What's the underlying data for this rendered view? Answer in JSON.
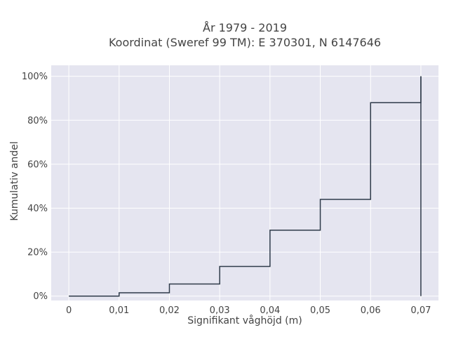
{
  "chart_data": {
    "type": "line",
    "line_shape": "step",
    "title_lines": [
      "År 1979 - 2019",
      "Koordinat (Sweref 99 TM): E 370301, N 6147646"
    ],
    "xlabel": "Signifikant våghöjd (m)",
    "ylabel": "Kumulativ andel",
    "xlim": [
      -0.0035,
      0.0735
    ],
    "ylim": [
      -0.02,
      1.05
    ],
    "x_ticks": [
      0,
      0.01,
      0.02,
      0.03,
      0.04,
      0.05,
      0.06,
      0.07
    ],
    "x_tick_labels": [
      "0",
      "0,01",
      "0,02",
      "0,03",
      "0,04",
      "0,05",
      "0,06",
      "0,07"
    ],
    "y_ticks": [
      0,
      0.2,
      0.4,
      0.6,
      0.8,
      1.0
    ],
    "y_tick_labels": [
      "0%",
      "20%",
      "40%",
      "60%",
      "80%",
      "100%"
    ],
    "grid": true,
    "legend": "none",
    "series": [
      {
        "color": "#2f3b4a",
        "x": [
          0,
          0.01,
          0.02,
          0.03,
          0.04,
          0.05,
          0.06,
          0.07,
          0.07
        ],
        "y": [
          0,
          0.015,
          0.055,
          0.135,
          0.3,
          0.44,
          0.88,
          0.88,
          1.0
        ]
      }
    ],
    "colors": {
      "plot_bg": "#e5e5f0",
      "grid": "#ffffff",
      "text": "#444444",
      "line": "#2f3b4a"
    }
  }
}
